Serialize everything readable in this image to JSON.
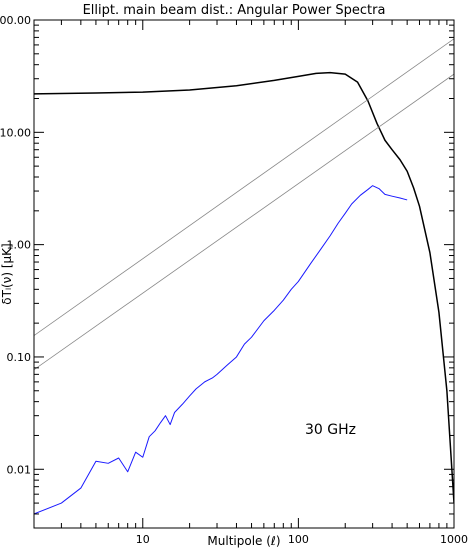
{
  "chart_data": {
    "type": "line",
    "title": "Ellipt. main beam dist.: Angular Power Spectra",
    "xlabel": "Multipole (ℓ)",
    "ylabel": "δTₗ(ν) [μK]",
    "x_scale": "log",
    "y_scale": "log",
    "xlim": [
      2,
      1000
    ],
    "ylim": [
      0.003,
      100
    ],
    "grid": false,
    "legend": "none",
    "annotation": "30 GHz",
    "x_ticks": [
      {
        "v": 10,
        "label": "10"
      },
      {
        "v": 100,
        "label": "100"
      },
      {
        "v": 1000,
        "label": "1000"
      }
    ],
    "y_ticks": [
      {
        "v": 0.01,
        "label": "0.01"
      },
      {
        "v": 0.1,
        "label": "0.10"
      },
      {
        "v": 1,
        "label": "1.00"
      },
      {
        "v": 10,
        "label": "10.00"
      },
      {
        "v": 100,
        "label": "100.00"
      }
    ],
    "series": [
      {
        "color": "#000000",
        "width": 1.5,
        "style": "solid",
        "x": [
          2,
          5,
          10,
          20,
          40,
          70,
          100,
          130,
          160,
          200,
          240,
          280,
          320,
          360,
          400,
          450,
          500,
          550,
          600,
          700,
          800,
          900,
          1000
        ],
        "y": [
          22,
          22.4,
          22.8,
          23.8,
          26,
          29,
          31.5,
          33.5,
          34,
          33,
          28,
          19,
          12,
          8.5,
          7.0,
          5.7,
          4.5,
          3.2,
          2.2,
          0.85,
          0.25,
          0.05,
          0.005
        ]
      },
      {
        "color": "#888888",
        "width": 0.8,
        "style": "solid",
        "x": [
          2,
          1000
        ],
        "y": [
          0.155,
          68
        ]
      },
      {
        "color": "#888888",
        "width": 0.8,
        "style": "solid",
        "x": [
          2,
          1000
        ],
        "y": [
          0.077,
          33
        ]
      },
      {
        "color": "#1a1aff",
        "width": 1,
        "style": "solid",
        "x": [
          2,
          3,
          4,
          5,
          6,
          7,
          8,
          9,
          10,
          11,
          12,
          13,
          14,
          15,
          16,
          18,
          20,
          22,
          25,
          28,
          30,
          35,
          40,
          45,
          50,
          60,
          70,
          80,
          90,
          100,
          120,
          140,
          160,
          180,
          200,
          220,
          250,
          280,
          300,
          330,
          360,
          400,
          450,
          500
        ],
        "y": [
          0.004,
          0.005,
          0.0068,
          0.0118,
          0.0113,
          0.0126,
          0.0095,
          0.0142,
          0.0128,
          0.0195,
          0.022,
          0.026,
          0.03,
          0.025,
          0.032,
          0.038,
          0.045,
          0.052,
          0.06,
          0.065,
          0.07,
          0.085,
          0.1,
          0.13,
          0.15,
          0.21,
          0.26,
          0.32,
          0.4,
          0.47,
          0.68,
          0.92,
          1.2,
          1.55,
          1.9,
          2.3,
          2.75,
          3.1,
          3.35,
          3.15,
          2.8,
          2.7,
          2.6,
          2.5
        ]
      }
    ]
  }
}
